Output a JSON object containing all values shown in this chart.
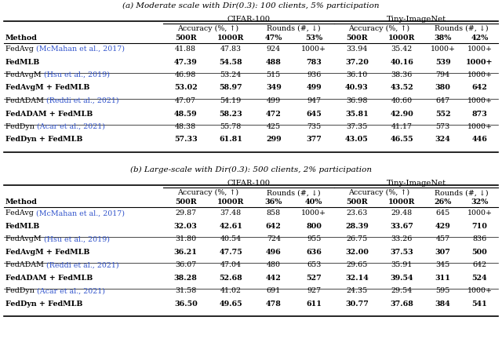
{
  "title_a": "(a) Moderate scale with Dir(0.3): 100 clients, 5% participation",
  "title_b": "(b) Large-scale with Dir(0.3): 500 clients, 2% participation",
  "ref_color": "#3355CC",
  "table_a": {
    "col_headers_row3": [
      "Method",
      "500R",
      "1000R",
      "47%",
      "53%",
      "500R",
      "1000R",
      "38%",
      "42%"
    ],
    "rows": [
      {
        "method_base": "FedAvg ",
        "method_cite": "(McMahan et al., 2017)",
        "bold": false,
        "vals": [
          "41.88",
          "47.83",
          "924",
          "1000+",
          "33.94",
          "35.42",
          "1000+",
          "1000+"
        ]
      },
      {
        "method_base": "FedMLB",
        "method_cite": "",
        "bold": true,
        "vals": [
          "47.39",
          "54.58",
          "488",
          "783",
          "37.20",
          "40.16",
          "539",
          "1000+"
        ]
      },
      {
        "method_base": "FedAvgM ",
        "method_cite": "(Hsu et al., 2019)",
        "bold": false,
        "vals": [
          "46.98",
          "53.24",
          "515",
          "936",
          "36.10",
          "38.36",
          "794",
          "1000+"
        ]
      },
      {
        "method_base": "FedAvgM + FedMLB",
        "method_cite": "",
        "bold": true,
        "vals": [
          "53.02",
          "58.97",
          "349",
          "499",
          "40.93",
          "43.52",
          "380",
          "642"
        ]
      },
      {
        "method_base": "FedADAM ",
        "method_cite": "(Reddi et al., 2021)",
        "bold": false,
        "vals": [
          "47.07",
          "54.19",
          "499",
          "947",
          "36.98",
          "40.60",
          "647",
          "1000+"
        ]
      },
      {
        "method_base": "FedADAM + FedMLB",
        "method_cite": "",
        "bold": true,
        "vals": [
          "48.59",
          "58.23",
          "472",
          "645",
          "35.81",
          "42.90",
          "552",
          "873"
        ]
      },
      {
        "method_base": "FedDyn ",
        "method_cite": "(Acar et al., 2021)",
        "bold": false,
        "vals": [
          "48.38",
          "55.78",
          "425",
          "735",
          "37.35",
          "41.17",
          "573",
          "1000+"
        ]
      },
      {
        "method_base": "FedDyn + FedMLB",
        "method_cite": "",
        "bold": true,
        "vals": [
          "57.33",
          "61.81",
          "299",
          "377",
          "43.05",
          "46.55",
          "324",
          "446"
        ]
      }
    ]
  },
  "table_b": {
    "col_headers_row3": [
      "Method",
      "500R",
      "1000R",
      "36%",
      "40%",
      "500R",
      "1000R",
      "26%",
      "32%"
    ],
    "rows": [
      {
        "method_base": "FedAvg ",
        "method_cite": "(McMahan et al., 2017)",
        "bold": false,
        "vals": [
          "29.87",
          "37.48",
          "858",
          "1000+",
          "23.63",
          "29.48",
          "645",
          "1000+"
        ]
      },
      {
        "method_base": "FedMLB",
        "method_cite": "",
        "bold": true,
        "vals": [
          "32.03",
          "42.61",
          "642",
          "800",
          "28.39",
          "33.67",
          "429",
          "710"
        ]
      },
      {
        "method_base": "FedAvgM ",
        "method_cite": "(Hsu et al., 2019)",
        "bold": false,
        "vals": [
          "31.80",
          "40.54",
          "724",
          "955",
          "26.75",
          "33.26",
          "457",
          "836"
        ]
      },
      {
        "method_base": "FedAvgM + FedMLB",
        "method_cite": "",
        "bold": true,
        "vals": [
          "36.21",
          "47.75",
          "496",
          "636",
          "32.00",
          "37.53",
          "307",
          "500"
        ]
      },
      {
        "method_base": "FedADAM ",
        "method_cite": "(Reddi et al., 2021)",
        "bold": false,
        "vals": [
          "36.07",
          "47.04",
          "480",
          "653",
          "29.65",
          "35.91",
          "345",
          "642"
        ]
      },
      {
        "method_base": "FedADAM + FedMLB",
        "method_cite": "",
        "bold": true,
        "vals": [
          "38.28",
          "52.68",
          "442",
          "527",
          "32.14",
          "39.54",
          "311",
          "524"
        ]
      },
      {
        "method_base": "FedDyn ",
        "method_cite": "(Acar et al., 2021)",
        "bold": false,
        "vals": [
          "31.58",
          "41.02",
          "691",
          "927",
          "24.35",
          "29.54",
          "595",
          "1000+"
        ]
      },
      {
        "method_base": "FedDyn + FedMLB",
        "method_cite": "",
        "bold": true,
        "vals": [
          "36.50",
          "49.65",
          "478",
          "611",
          "30.77",
          "37.68",
          "384",
          "541"
        ]
      }
    ]
  }
}
